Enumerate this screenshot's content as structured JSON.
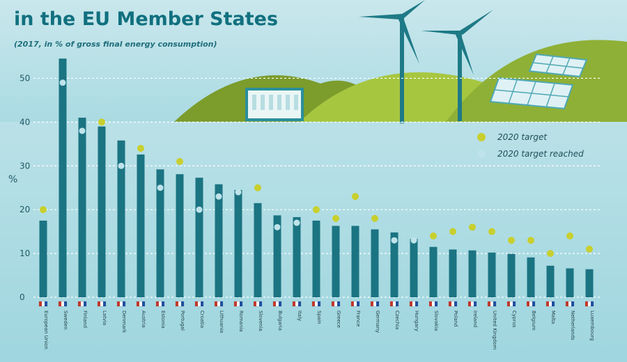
{
  "header": {
    "title": "in the EU Member States",
    "subtitle": "(2017, in % of gross final energy consumption)"
  },
  "colors": {
    "bar": "#1b7482",
    "target": "#c8cf2e",
    "target_reached": "#bfe3ea",
    "background_top": "#c9e7ec",
    "background_bottom": "#6fc3d0",
    "hill_dark": "#7c9c2c",
    "hill_light": "#a7c640"
  },
  "icons": [
    "wind-turbine-icon",
    "solar-panel-icon",
    "dam-icon",
    "flag-icon"
  ],
  "chart_data": {
    "type": "bar",
    "title": "in the EU Member States",
    "subtitle": "(2017, in % of gross final energy consumption)",
    "ylabel": "%",
    "xlabel": "",
    "ylim": [
      0,
      55
    ],
    "yticks": [
      0,
      10,
      20,
      30,
      40,
      50
    ],
    "grid": true,
    "legend": [
      {
        "label": "2020 target",
        "marker": "target"
      },
      {
        "label": "2020 target reached",
        "marker": "target_reached"
      }
    ],
    "legend_position": "top-right",
    "categories": [
      "European Union",
      "Sweden",
      "Finland",
      "Latvia",
      "Denmark",
      "Austria",
      "Estonia",
      "Portugal",
      "Croatia",
      "Lithuania",
      "Romania",
      "Slovenia",
      "Bulgaria",
      "Italy",
      "Spain",
      "Greece",
      "France",
      "Germany",
      "Czechia",
      "Hungary",
      "Slovakia",
      "Poland",
      "Ireland",
      "United Kingdom",
      "Cyprus",
      "Belgium",
      "Malta",
      "Netherlands",
      "Luxembourg"
    ],
    "series": [
      {
        "name": "",
        "values": [
          17.5,
          54.5,
          41.0,
          39.0,
          35.8,
          32.6,
          29.2,
          28.1,
          27.3,
          25.8,
          24.5,
          21.5,
          18.7,
          18.3,
          17.5,
          16.3,
          16.3,
          15.5,
          14.8,
          13.3,
          11.5,
          10.9,
          10.7,
          10.2,
          9.9,
          9.1,
          7.2,
          6.6,
          6.4
        ]
      }
    ],
    "targets": [
      20,
      49,
      38,
      40,
      30,
      34,
      25,
      31,
      20,
      23,
      24,
      25,
      16,
      17,
      20,
      18,
      23,
      18,
      13,
      13,
      14,
      15,
      16,
      15,
      13,
      13,
      10,
      14,
      11
    ],
    "target_reached": [
      false,
      true,
      true,
      false,
      true,
      false,
      true,
      false,
      true,
      true,
      true,
      false,
      true,
      true,
      false,
      false,
      false,
      false,
      true,
      true,
      false,
      false,
      false,
      false,
      false,
      false,
      false,
      false,
      false
    ]
  }
}
